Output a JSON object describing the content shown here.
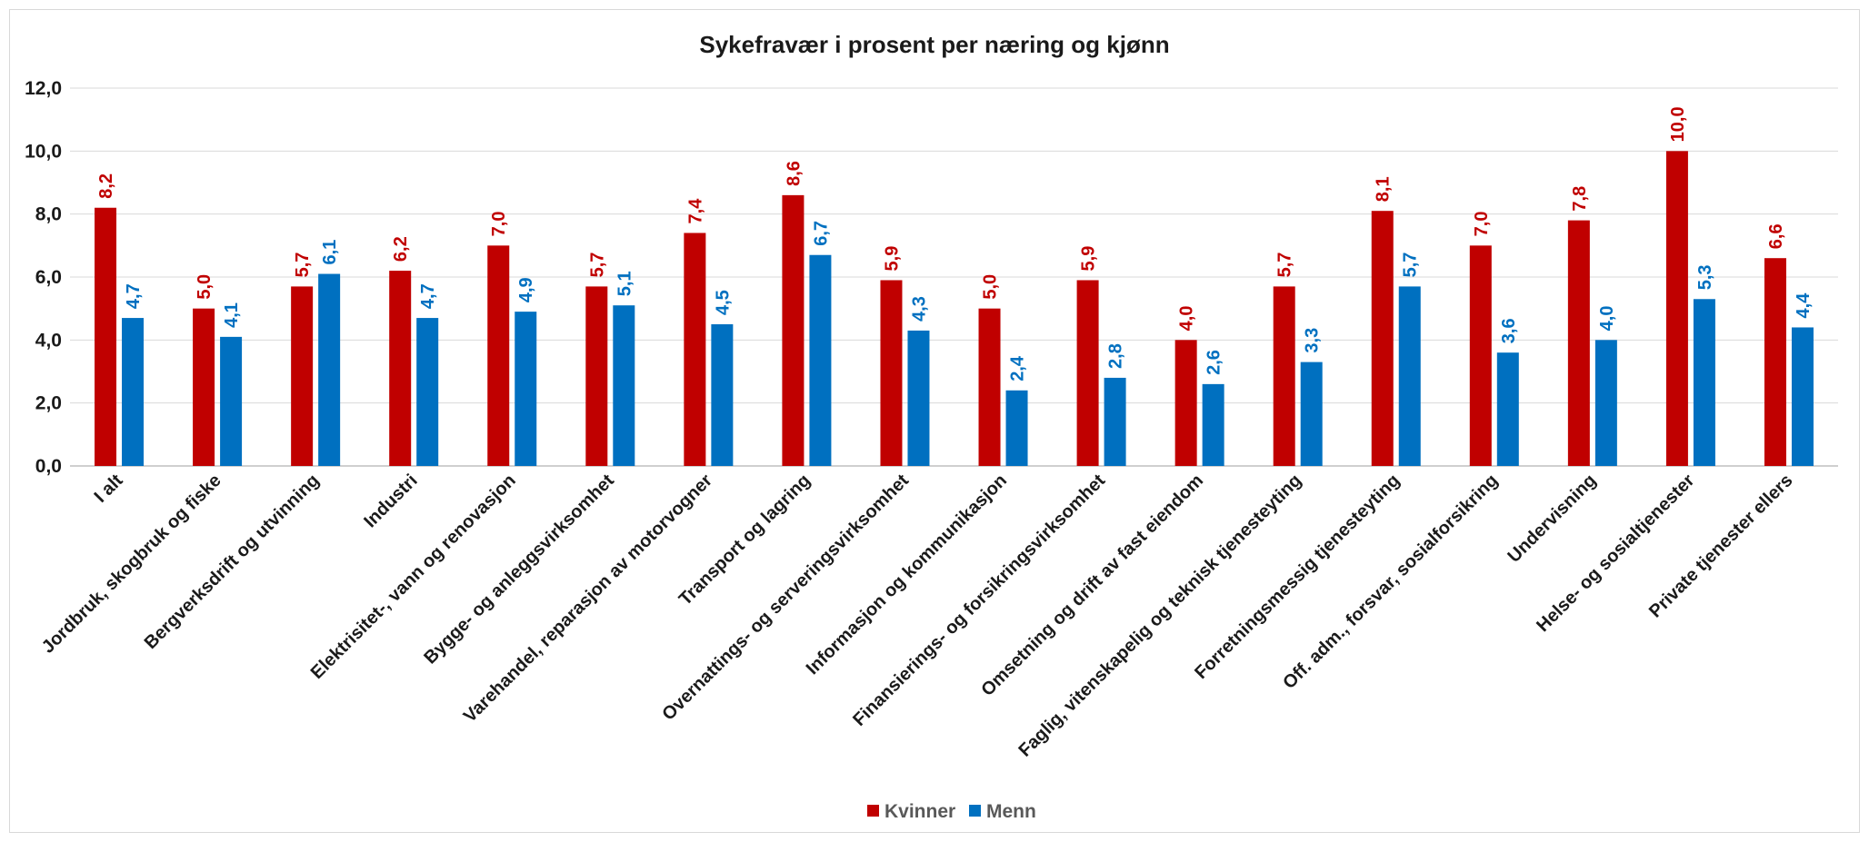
{
  "chart_data": {
    "type": "bar",
    "title": "Sykefravær i prosent per næring og kjønn",
    "categories": [
      "I alt",
      "Jordbruk, skogbruk og fiske",
      "Bergverksdrift og utvinning",
      "Industri",
      "Elektrisitet-, vann og renovasjon",
      "Bygge- og anleggsvirksomhet",
      "Varehandel, reparasjon av motorvogner",
      "Transport og lagring",
      "Overnattings- og serveringsvirksomhet",
      "Informasjon og kommunikasjon",
      "Finansierings- og forsikringsvirksomhet",
      "Omsetning og drift av fast eiendom",
      "Faglig, vitenskapelig og teknisk tjenesteyting",
      "Forretningsmessig tjenesteyting",
      "Off. adm., forsvar, sosialforsikring",
      "Undervisning",
      "Helse- og sosialtjenester",
      "Private tjenester ellers"
    ],
    "series": [
      {
        "name": "Kvinner",
        "color": "#c00000",
        "values": [
          8.2,
          5.0,
          5.7,
          6.2,
          7.0,
          5.7,
          7.4,
          8.6,
          5.9,
          5.0,
          5.9,
          4.0,
          5.7,
          8.1,
          7.0,
          7.8,
          10.0,
          6.6
        ]
      },
      {
        "name": "Menn",
        "color": "#0070c0",
        "values": [
          4.7,
          4.1,
          6.1,
          4.7,
          4.9,
          5.1,
          4.5,
          6.7,
          4.3,
          2.4,
          2.8,
          2.6,
          3.3,
          5.7,
          3.6,
          4.0,
          5.3,
          4.4
        ]
      }
    ],
    "yticks": [
      "0,0",
      "2,0",
      "4,0",
      "6,0",
      "8,0",
      "10,0",
      "12,0"
    ],
    "ylim": [
      0,
      12
    ],
    "grid": true,
    "legend": "bottom-center",
    "xlabel": "",
    "ylabel": ""
  }
}
